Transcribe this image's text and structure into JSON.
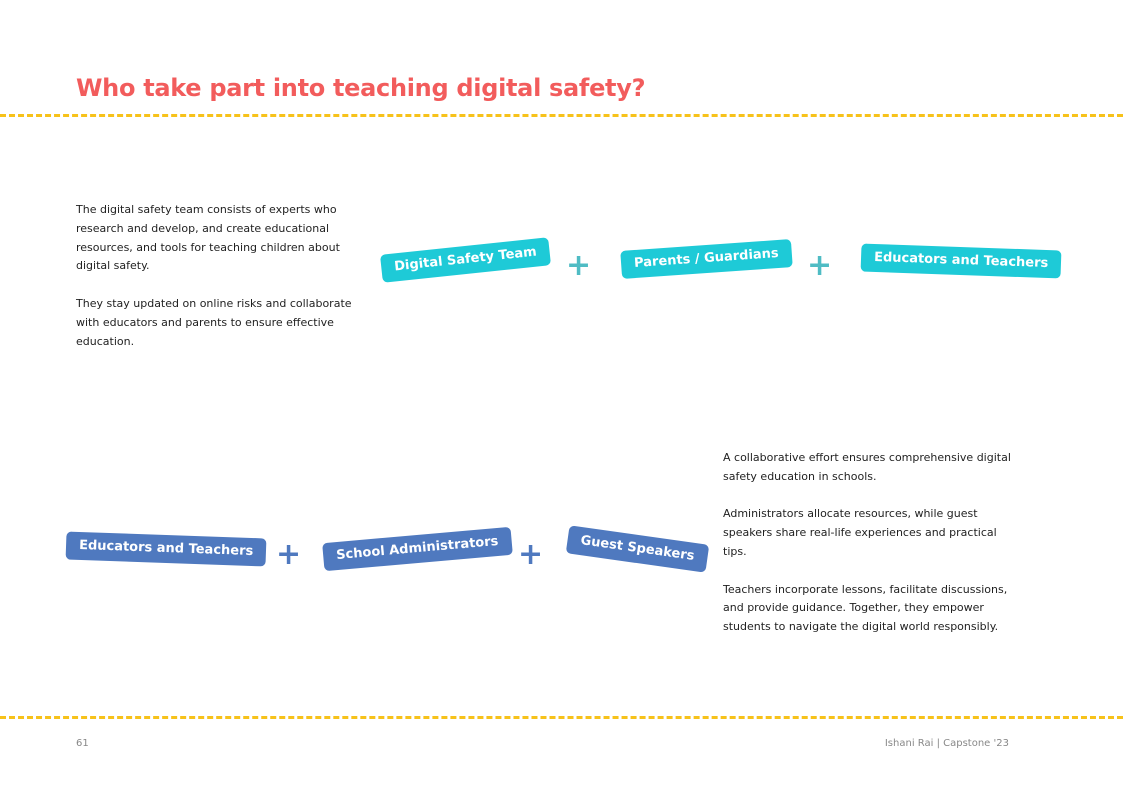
{
  "page": {
    "title": "Who take part into teaching digital safety?",
    "page_number": "61",
    "footer_credit": "Ishani Rai | Capstone '23"
  },
  "colors": {
    "title": "#f25c5c",
    "divider": "#f7c21a",
    "cyan_pill": "#1ecad7",
    "blue_pill": "#4f79bf"
  },
  "section1": {
    "paragraphs": [
      "The digital safety team consists of experts who research and develop, and create educational resources, and tools for teaching children about digital safety.",
      "They stay updated on online risks and collaborate with educators and parents to ensure effective education."
    ],
    "pills": [
      "Digital Safety Team",
      "Parents / Guardians",
      "Educators and Teachers"
    ],
    "plus": "+"
  },
  "section2": {
    "paragraphs": [
      "A collaborative effort ensures comprehensive digital safety education in schools.",
      "Administrators allocate resources, while guest speakers share real-life experiences and practical tips.",
      "Teachers incorporate lessons, facilitate discussions, and provide guidance. Together, they empower students to navigate the digital world responsibly."
    ],
    "pills": [
      "Educators and Teachers",
      "School Administrators",
      "Guest Speakers"
    ],
    "plus": "+"
  }
}
